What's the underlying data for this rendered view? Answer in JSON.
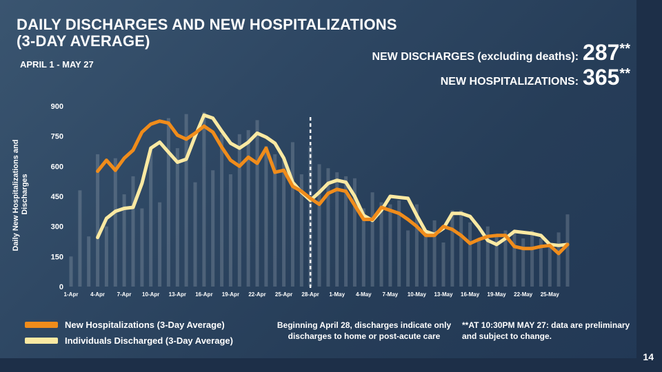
{
  "title_line1": "DAILY DISCHARGES AND NEW HOSPITALIZATIONS",
  "title_line2": "(3-DAY AVERAGE)",
  "subtitle": "APRIL 1 - MAY 27",
  "stats": {
    "discharges_label": "NEW DISCHARGES (excluding deaths):",
    "discharges_value": "287",
    "hosp_label": "NEW HOSPITALIZATIONS:",
    "hosp_value": "365",
    "asterisks": "**"
  },
  "legend": {
    "hosp": "New Hospitalizations (3-Day Average)",
    "disch": "Individuals Discharged (3-Day Average)"
  },
  "notes": {
    "middle": "Beginning April 28, discharges indicate only discharges to home or post-acute care",
    "right": "**AT 10:30PM MAY 27: data are preliminary and subject to change."
  },
  "page_number": "14",
  "colors": {
    "hosp_line": "#f08c1b",
    "disch_line": "#fbe9a2",
    "bars": "#a9b4bf",
    "background": "#2e4763"
  },
  "chart_data": {
    "type": "line",
    "ylabel": "Daily New Hospitalizations and Discharges",
    "ylim": [
      0,
      900
    ],
    "yticks": [
      0,
      150,
      300,
      450,
      600,
      750,
      900
    ],
    "x_start": "1-Apr",
    "num_days": 57,
    "xtick_labels": [
      "1-Apr",
      "4-Apr",
      "7-Apr",
      "10-Apr",
      "13-Apr",
      "16-Apr",
      "19-Apr",
      "22-Apr",
      "25-Apr",
      "28-Apr",
      "1-May",
      "4-May",
      "7-May",
      "10-May",
      "13-May",
      "16-May",
      "19-May",
      "22-May",
      "25-May"
    ],
    "xtick_days": [
      1,
      4,
      7,
      10,
      13,
      16,
      19,
      22,
      25,
      28,
      31,
      34,
      37,
      40,
      43,
      46,
      49,
      52,
      55
    ],
    "marker_label": "28-Apr",
    "marker_day": 28,
    "series": [
      {
        "name": "New Hospitalizations (3-Day Average)",
        "color": "#f08c1b",
        "start_day": 4,
        "values": [
          575,
          630,
          580,
          640,
          680,
          770,
          810,
          825,
          815,
          755,
          735,
          765,
          800,
          770,
          695,
          630,
          600,
          645,
          615,
          690,
          570,
          580,
          500,
          475,
          440,
          410,
          465,
          485,
          475,
          405,
          335,
          335,
          395,
          380,
          365,
          335,
          300,
          255,
          255,
          300,
          285,
          255,
          215,
          235,
          250,
          255,
          255,
          200,
          190,
          190,
          200,
          205,
          165,
          210
        ]
      },
      {
        "name": "Individuals Discharged (3-Day Average)",
        "color": "#fbe9a2",
        "start_day": 4,
        "values": [
          245,
          340,
          375,
          390,
          395,
          515,
          690,
          720,
          670,
          620,
          635,
          750,
          855,
          840,
          775,
          715,
          690,
          720,
          765,
          745,
          715,
          640,
          520,
          470,
          430,
          470,
          515,
          530,
          520,
          450,
          355,
          330,
          380,
          450,
          445,
          440,
          355,
          275,
          260,
          290,
          365,
          365,
          350,
          295,
          230,
          210,
          240,
          275,
          270,
          265,
          255,
          210,
          205,
          210
        ]
      }
    ],
    "bars": {
      "start_day": 1,
      "values": [
        150,
        480,
        250,
        660,
        300,
        640,
        460,
        550,
        390,
        690,
        420,
        840,
        690,
        860,
        520,
        870,
        580,
        760,
        560,
        760,
        780,
        830,
        700,
        660,
        640,
        720,
        560,
        700,
        610,
        590,
        570,
        550,
        540,
        390,
        470,
        420,
        410,
        430,
        280,
        410,
        260,
        330,
        220,
        380,
        380,
        320,
        240,
        300,
        260,
        280,
        270,
        240,
        280,
        240,
        210,
        270,
        360
      ]
    }
  }
}
